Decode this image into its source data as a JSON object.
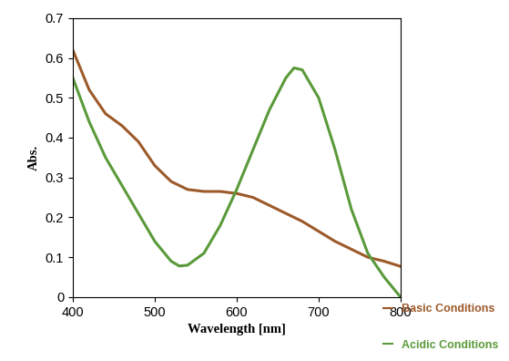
{
  "chart_data": {
    "type": "line",
    "x_label": "Wavelength [nm]",
    "y_label": "Abs.",
    "x": [
      400,
      420,
      440,
      460,
      480,
      500,
      520,
      530,
      540,
      560,
      580,
      600,
      620,
      640,
      660,
      670,
      680,
      700,
      720,
      740,
      760,
      780,
      800
    ],
    "series": [
      {
        "name": "Basic Conditions",
        "color": "#9c5a2a",
        "values": [
          0.62,
          0.52,
          0.46,
          0.43,
          0.39,
          0.33,
          0.29,
          0.28,
          0.27,
          0.265,
          0.265,
          0.26,
          0.25,
          0.23,
          0.21,
          0.2,
          0.19,
          0.165,
          0.14,
          0.12,
          0.1,
          0.09,
          0.077
        ]
      },
      {
        "name": "Acidic Conditions",
        "color": "#5a9a3a",
        "values": [
          0.55,
          0.44,
          0.35,
          0.28,
          0.21,
          0.14,
          0.09,
          0.078,
          0.08,
          0.11,
          0.18,
          0.27,
          0.37,
          0.47,
          0.55,
          0.575,
          0.57,
          0.5,
          0.37,
          0.22,
          0.11,
          0.05,
          0.0
        ]
      }
    ],
    "xlim": [
      400,
      800
    ],
    "xticks": [
      400,
      500,
      600,
      700,
      800
    ],
    "ylim": [
      0,
      0.7
    ],
    "yticks": [
      0,
      0.1,
      0.2,
      0.3,
      0.4,
      0.5,
      0.6,
      0.7
    ],
    "legend": "lower right",
    "grid": false
  }
}
